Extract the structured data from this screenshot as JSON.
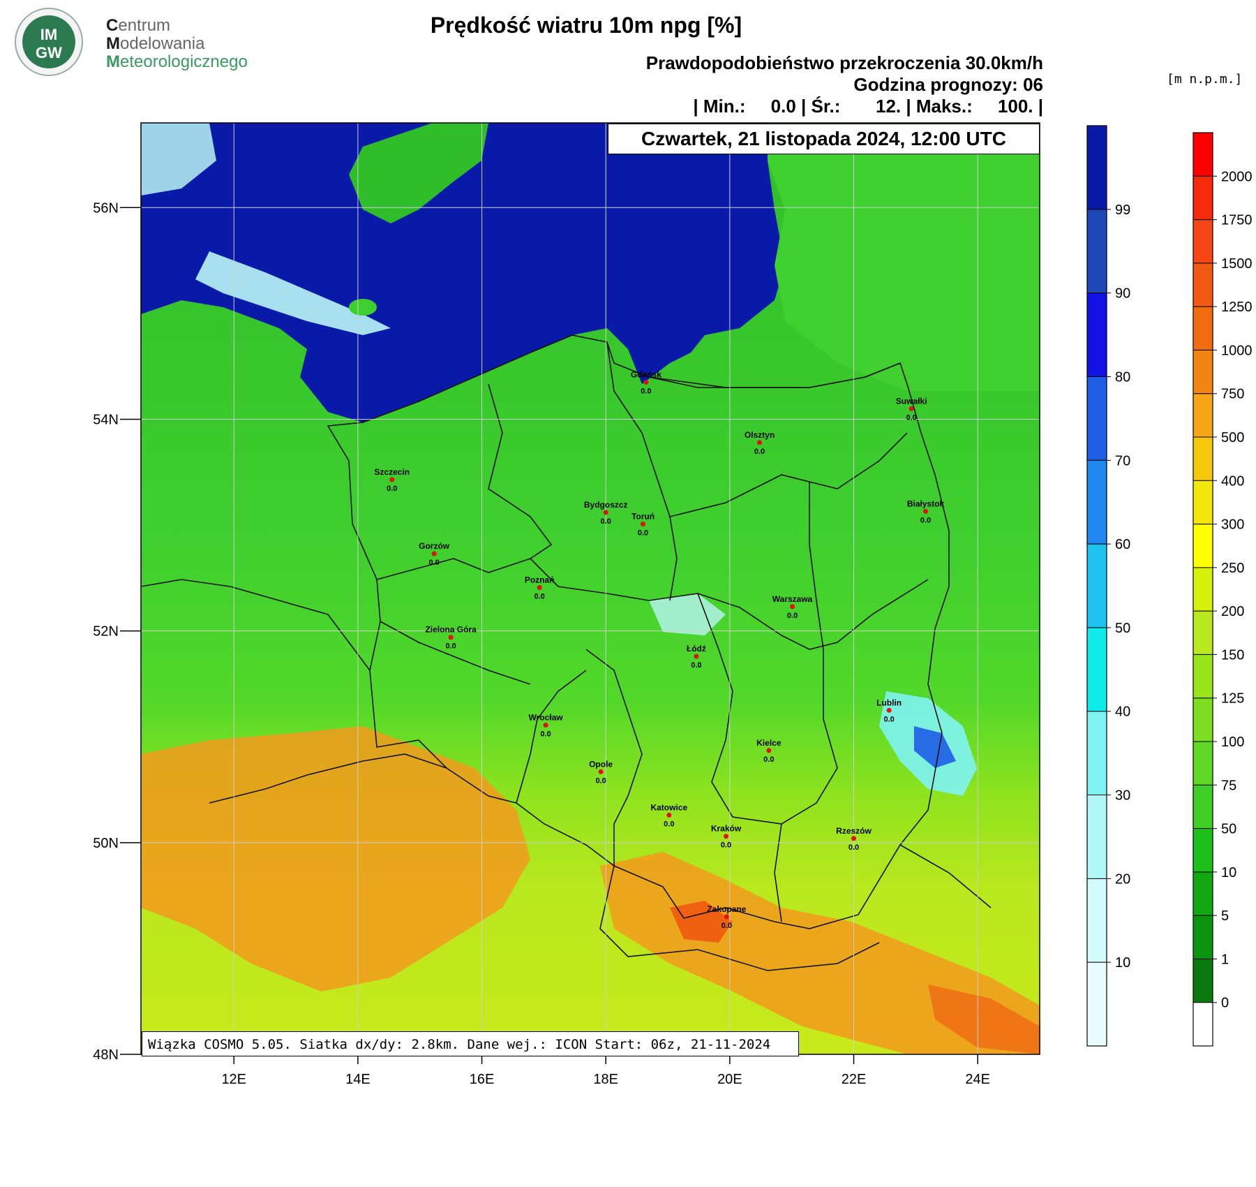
{
  "logo": {
    "badge_top": "IM",
    "badge_bottom": "GW",
    "line1_initial": "C",
    "line1_rest": "entrum",
    "line2_initial": "M",
    "line2_rest": "odelowania",
    "line3_initial": "M",
    "line3_rest": "eteorologicznego"
  },
  "header": {
    "title": "Prędkość wiatru 10m npg [%]",
    "subtitle1": "Prawdopodobieństwo przekroczenia 30.0km/h",
    "subtitle2": "Godzina prognozy: 06",
    "stats": "| Min.:     0.0 | Śr.:       12. | Maks.:     100. |",
    "date": "Czwartek, 21 listopada 2024, 12:00 UTC"
  },
  "footer": {
    "model_info": "Wiązka COSMO 5.05. Siatka dx/dy: 2.8km. Dane wej.: ICON Start: 06z, 21-11-2024"
  },
  "map": {
    "lon_ticks": [
      "12E",
      "14E",
      "16E",
      "18E",
      "20E",
      "22E",
      "24E"
    ],
    "lon_values": [
      12,
      14,
      16,
      18,
      20,
      22,
      24
    ],
    "lat_ticks": [
      "56N",
      "54N",
      "52N",
      "50N",
      "48N"
    ],
    "lat_values": [
      56,
      54,
      52,
      50,
      48
    ],
    "lon_range": [
      10.5,
      25.0
    ],
    "lat_range": [
      48.0,
      56.8
    ],
    "colors": {
      "sea": "#0a1aa8",
      "lowland": "#3fcf2e",
      "upland": "#b9e81e",
      "mountain": "#f39a1c",
      "city": "#e0120f"
    },
    "cities": [
      {
        "name": "Gdańsk",
        "value": "0.0",
        "lon": 18.65,
        "lat": 54.35
      },
      {
        "name": "Suwałki",
        "value": "0.0",
        "lon": 22.93,
        "lat": 54.1
      },
      {
        "name": "Olsztyn",
        "value": "0.0",
        "lon": 20.48,
        "lat": 53.78
      },
      {
        "name": "Szczecin",
        "value": "0.0",
        "lon": 14.55,
        "lat": 53.43
      },
      {
        "name": "Bydgoszcz",
        "value": "0.0",
        "lon": 18.0,
        "lat": 53.12
      },
      {
        "name": "Toruń",
        "value": "0.0",
        "lon": 18.6,
        "lat": 53.01
      },
      {
        "name": "Białystok",
        "value": "0.0",
        "lon": 23.16,
        "lat": 53.13
      },
      {
        "name": "Gorzów",
        "value": "0.0",
        "lon": 15.23,
        "lat": 52.73
      },
      {
        "name": "Poznań",
        "value": "0.0",
        "lon": 16.93,
        "lat": 52.41
      },
      {
        "name": "Warszawa",
        "value": "0.0",
        "lon": 21.01,
        "lat": 52.23
      },
      {
        "name": "Zielona Góra",
        "value": "0.0",
        "lon": 15.5,
        "lat": 51.94
      },
      {
        "name": "Łódź",
        "value": "0.0",
        "lon": 19.46,
        "lat": 51.76
      },
      {
        "name": "Lublin",
        "value": "0.0",
        "lon": 22.57,
        "lat": 51.25
      },
      {
        "name": "Wrocław",
        "value": "0.0",
        "lon": 17.03,
        "lat": 51.11
      },
      {
        "name": "Kielce",
        "value": "0.0",
        "lon": 20.63,
        "lat": 50.87
      },
      {
        "name": "Opole",
        "value": "0.0",
        "lon": 17.92,
        "lat": 50.67
      },
      {
        "name": "Katowice",
        "value": "0.0",
        "lon": 19.02,
        "lat": 50.26
      },
      {
        "name": "Kraków",
        "value": "0.0",
        "lon": 19.94,
        "lat": 50.06
      },
      {
        "name": "Rzeszów",
        "value": "0.0",
        "lon": 22.0,
        "lat": 50.04
      },
      {
        "name": "Zakopane",
        "value": "0.0",
        "lon": 19.95,
        "lat": 49.3
      }
    ]
  },
  "colorbar_probability": {
    "labels": [
      "99",
      "90",
      "80",
      "70",
      "60",
      "50",
      "40",
      "30",
      "20",
      "10"
    ],
    "colors": [
      "#0a1aa8",
      "#1c48b8",
      "#1212e6",
      "#1e5de6",
      "#1e88f0",
      "#1ec3f0",
      "#10ecec",
      "#7ef3f3",
      "#b0f7f7",
      "#d2fafa",
      "#e9fdfd"
    ]
  },
  "colorbar_elevation": {
    "labels": [
      "2000",
      "1750",
      "1500",
      "1250",
      "1000",
      "750",
      "500",
      "400",
      "300",
      "250",
      "200",
      "150",
      "125",
      "100",
      "75",
      "50",
      "10",
      "5",
      "1",
      "0"
    ],
    "colors": [
      "#ff0000",
      "#f42a0a",
      "#f54515",
      "#f25a14",
      "#f36d10",
      "#f58512",
      "#f5a516",
      "#f5c60a",
      "#f5e60a",
      "#ffff00",
      "#d6f20c",
      "#b9e81e",
      "#98e61a",
      "#7ede20",
      "#5ed826",
      "#3ecf26",
      "#1ec01c",
      "#12a812",
      "#0b9410",
      "#0a7a0e",
      "#ffffff"
    ]
  }
}
